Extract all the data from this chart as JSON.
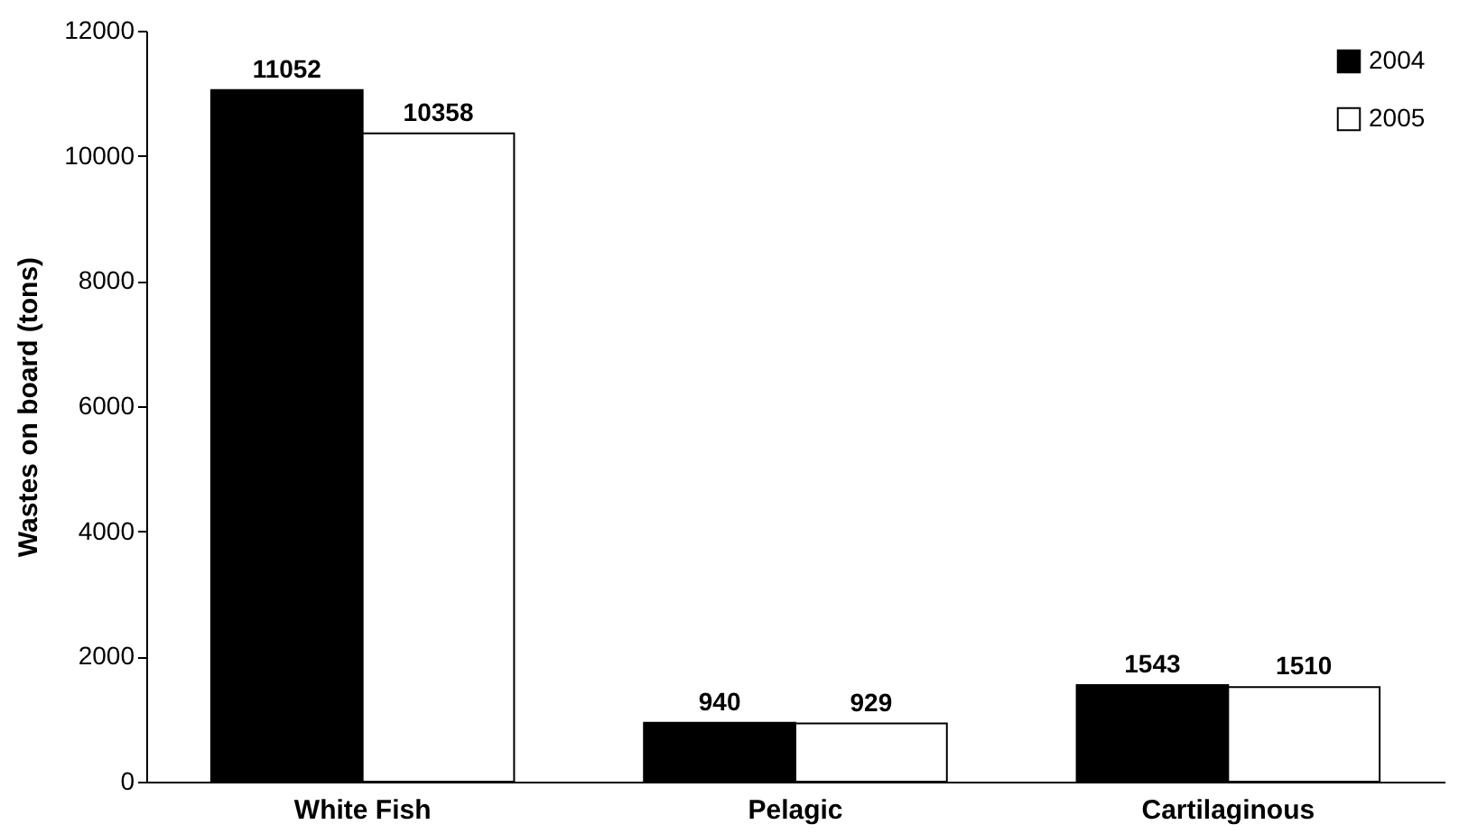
{
  "chart_data": {
    "type": "bar",
    "ylabel": "Wastes on board (tons)",
    "categories": [
      "White Fish",
      "Pelagic",
      "Cartilaginous"
    ],
    "series": [
      {
        "name": "2004",
        "color": "#000000",
        "values": [
          11052,
          940,
          1543
        ]
      },
      {
        "name": "2005",
        "color": "#ffffff",
        "values": [
          10358,
          929,
          1510
        ]
      }
    ],
    "ylim": [
      0,
      12000
    ],
    "yticks": [
      0,
      2000,
      4000,
      6000,
      8000,
      10000,
      12000
    ],
    "grid": false,
    "legend": "top right",
    "data_labels": true
  }
}
